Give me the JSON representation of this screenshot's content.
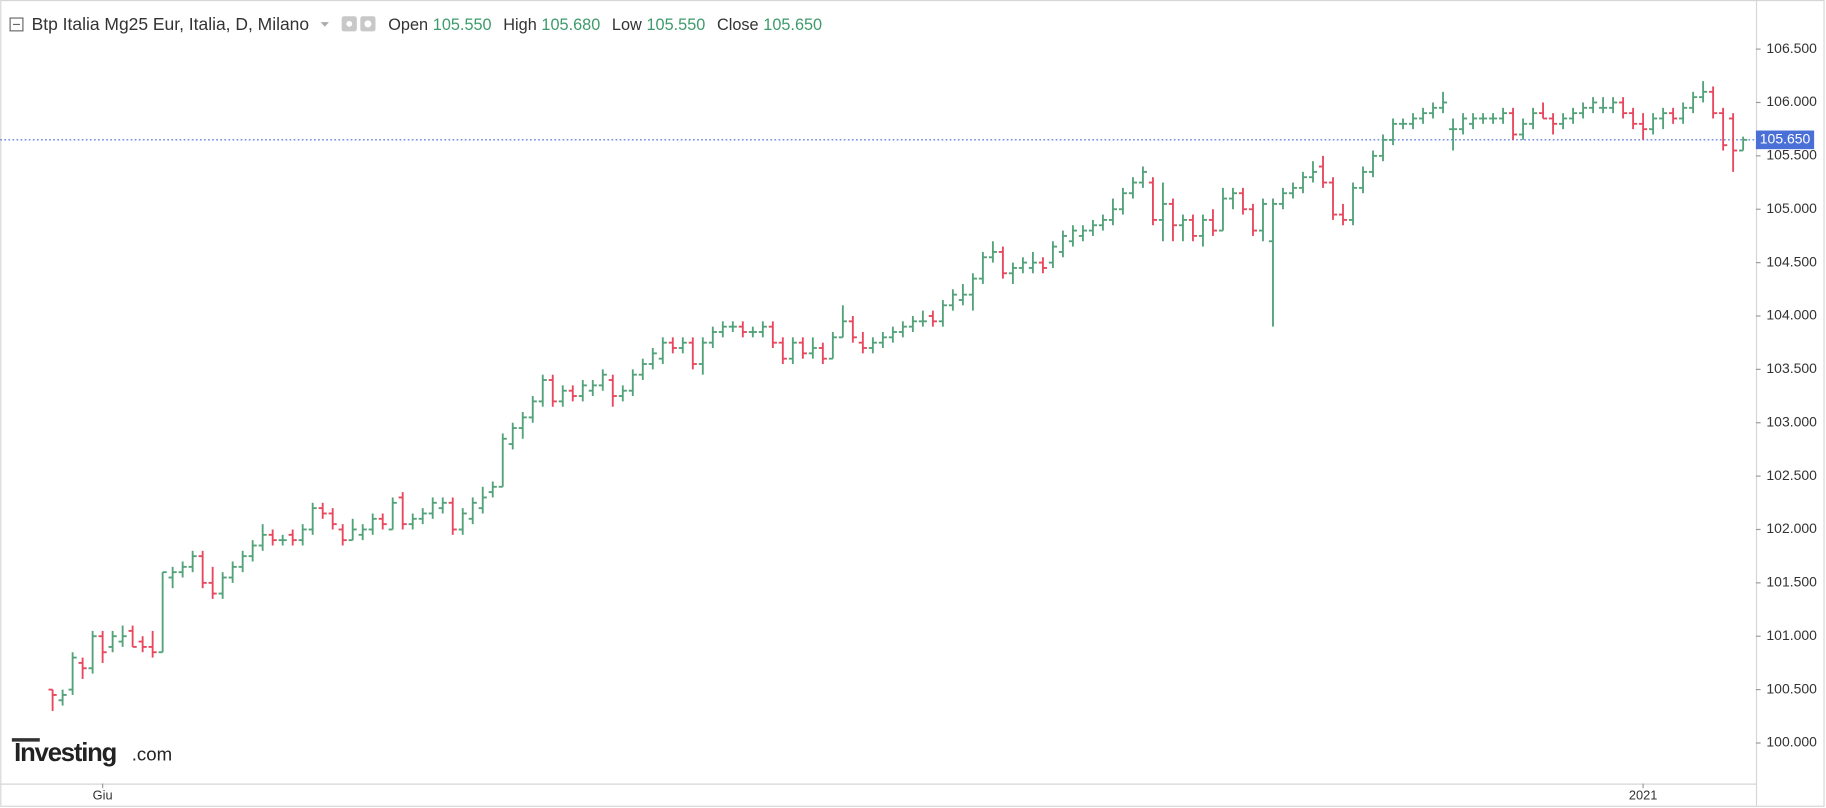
{
  "chart_data": {
    "type": "ohlc",
    "header": {
      "title": "Btp Italia Mg25 Eur, Italia, D, Milano",
      "fields": [
        {
          "label": "Open",
          "value": "105.550"
        },
        {
          "label": "High",
          "value": "105.680"
        },
        {
          "label": "Low",
          "value": "105.550"
        },
        {
          "label": "Close",
          "value": "105.650"
        }
      ]
    },
    "watermark": {
      "brand": "Investing",
      "suffix": ".com"
    },
    "up_color": "#53a27a",
    "down_color": "#e8475d",
    "ylim": [
      99.62,
      106.96
    ],
    "yticks": [
      {
        "value": 100,
        "label": "100.000"
      },
      {
        "value": 100.5,
        "label": "100.500"
      },
      {
        "value": 101,
        "label": "101.000"
      },
      {
        "value": 101.5,
        "label": "101.500"
      },
      {
        "value": 102,
        "label": "102.000"
      },
      {
        "value": 102.5,
        "label": "102.500"
      },
      {
        "value": 103,
        "label": "103.000"
      },
      {
        "value": 103.5,
        "label": "103.500"
      },
      {
        "value": 104,
        "label": "104.000"
      },
      {
        "value": 104.5,
        "label": "104.500"
      },
      {
        "value": 105,
        "label": "105.000"
      },
      {
        "value": 105.5,
        "label": "105.500"
      },
      {
        "value": 106,
        "label": "106.000"
      },
      {
        "value": 106.5,
        "label": "106.500"
      }
    ],
    "last_price": {
      "value": 105.65,
      "label": "105.650"
    },
    "categories": [
      null,
      null,
      null,
      null,
      null,
      "Giu",
      null,
      null,
      null,
      null,
      null,
      null,
      null,
      null,
      null,
      null,
      null,
      null,
      null,
      null,
      null,
      null,
      null,
      null,
      null,
      null,
      null,
      null,
      null,
      null,
      null,
      null,
      null,
      null,
      null,
      null,
      null,
      null,
      null,
      null,
      null,
      null,
      null,
      null,
      null,
      null,
      null,
      null,
      null,
      null,
      null,
      null,
      null,
      null,
      null,
      null,
      null,
      null,
      null,
      null,
      null,
      null,
      null,
      null,
      null,
      null,
      null,
      null,
      null,
      null,
      null,
      null,
      null,
      null,
      null,
      null,
      null,
      null,
      null,
      null,
      null,
      null,
      null,
      null,
      null,
      null,
      null,
      null,
      null,
      null,
      null,
      null,
      null,
      null,
      null,
      null,
      null,
      null,
      null,
      null,
      null,
      null,
      null,
      null,
      null,
      null,
      null,
      null,
      null,
      null,
      null,
      null,
      null,
      null,
      null,
      null,
      null,
      null,
      null,
      null,
      null,
      null,
      null,
      null,
      null,
      null,
      null,
      null,
      null,
      null,
      null,
      null,
      null,
      null,
      null,
      null,
      null,
      null,
      null,
      null,
      null,
      null,
      null,
      null,
      null,
      null,
      null,
      null,
      null,
      null,
      null,
      null,
      null,
      null,
      null,
      null,
      null,
      null,
      null,
      "2021",
      null,
      null,
      null,
      null,
      null,
      null,
      null,
      null,
      null,
      null
    ],
    "ohlc": [
      [
        100.5,
        100.5,
        100.3,
        100.45
      ],
      [
        100.4,
        100.5,
        100.35,
        100.45
      ],
      [
        100.5,
        100.85,
        100.45,
        100.8
      ],
      [
        100.75,
        100.8,
        100.6,
        100.7
      ],
      [
        100.7,
        101.05,
        100.65,
        101.0
      ],
      [
        101.0,
        101.05,
        100.75,
        100.85
      ],
      [
        100.9,
        101.05,
        100.85,
        101.0
      ],
      [
        100.95,
        101.1,
        100.9,
        101.0
      ],
      [
        101.05,
        101.1,
        100.9,
        100.9
      ],
      [
        100.95,
        101.0,
        100.85,
        100.9
      ],
      [
        100.9,
        101.05,
        100.8,
        100.85
      ],
      [
        100.85,
        101.6,
        100.85,
        101.6
      ],
      [
        101.55,
        101.65,
        101.45,
        101.6
      ],
      [
        101.6,
        101.7,
        101.55,
        101.65
      ],
      [
        101.65,
        101.8,
        101.6,
        101.75
      ],
      [
        101.75,
        101.8,
        101.45,
        101.5
      ],
      [
        101.5,
        101.65,
        101.35,
        101.4
      ],
      [
        101.4,
        101.6,
        101.35,
        101.55
      ],
      [
        101.55,
        101.7,
        101.5,
        101.65
      ],
      [
        101.65,
        101.8,
        101.6,
        101.75
      ],
      [
        101.75,
        101.9,
        101.7,
        101.85
      ],
      [
        101.85,
        102.05,
        101.8,
        101.95
      ],
      [
        101.95,
        102.0,
        101.85,
        101.9
      ],
      [
        101.9,
        101.95,
        101.85,
        101.9
      ],
      [
        101.95,
        102.0,
        101.85,
        101.9
      ],
      [
        101.9,
        102.05,
        101.85,
        102.0
      ],
      [
        102.0,
        102.25,
        101.95,
        102.2
      ],
      [
        102.2,
        102.25,
        102.1,
        102.15
      ],
      [
        102.15,
        102.2,
        102.0,
        102.05
      ],
      [
        102.0,
        102.05,
        101.85,
        101.9
      ],
      [
        101.9,
        102.1,
        101.9,
        102.0
      ],
      [
        101.95,
        102.05,
        101.9,
        102.0
      ],
      [
        102.0,
        102.15,
        101.95,
        102.1
      ],
      [
        102.1,
        102.15,
        102.0,
        102.05
      ],
      [
        102.0,
        102.3,
        102.0,
        102.25
      ],
      [
        102.3,
        102.35,
        102.0,
        102.05
      ],
      [
        102.05,
        102.15,
        102.0,
        102.1
      ],
      [
        102.1,
        102.2,
        102.05,
        102.15
      ],
      [
        102.15,
        102.3,
        102.1,
        102.25
      ],
      [
        102.2,
        102.3,
        102.15,
        102.25
      ],
      [
        102.25,
        102.3,
        101.95,
        102.0
      ],
      [
        102.0,
        102.2,
        101.95,
        102.15
      ],
      [
        102.1,
        102.3,
        102.05,
        102.25
      ],
      [
        102.2,
        102.4,
        102.15,
        102.3
      ],
      [
        102.35,
        102.45,
        102.3,
        102.4
      ],
      [
        102.4,
        102.9,
        102.4,
        102.85
      ],
      [
        102.8,
        103.0,
        102.75,
        102.95
      ],
      [
        102.95,
        103.1,
        102.85,
        103.05
      ],
      [
        103.05,
        103.25,
        103.0,
        103.2
      ],
      [
        103.2,
        103.45,
        103.15,
        103.4
      ],
      [
        103.4,
        103.45,
        103.15,
        103.2
      ],
      [
        103.2,
        103.35,
        103.15,
        103.3
      ],
      [
        103.3,
        103.35,
        103.2,
        103.25
      ],
      [
        103.25,
        103.4,
        103.2,
        103.35
      ],
      [
        103.3,
        103.4,
        103.25,
        103.35
      ],
      [
        103.35,
        103.5,
        103.3,
        103.45
      ],
      [
        103.4,
        103.45,
        103.15,
        103.25
      ],
      [
        103.25,
        103.35,
        103.2,
        103.3
      ],
      [
        103.3,
        103.5,
        103.25,
        103.45
      ],
      [
        103.45,
        103.6,
        103.4,
        103.55
      ],
      [
        103.55,
        103.7,
        103.5,
        103.65
      ],
      [
        103.6,
        103.8,
        103.55,
        103.75
      ],
      [
        103.75,
        103.8,
        103.65,
        103.7
      ],
      [
        103.7,
        103.8,
        103.65,
        103.75
      ],
      [
        103.75,
        103.8,
        103.5,
        103.55
      ],
      [
        103.55,
        103.8,
        103.45,
        103.75
      ],
      [
        103.75,
        103.9,
        103.7,
        103.85
      ],
      [
        103.85,
        103.95,
        103.8,
        103.9
      ],
      [
        103.9,
        103.95,
        103.85,
        103.9
      ],
      [
        103.9,
        103.95,
        103.8,
        103.85
      ],
      [
        103.85,
        103.9,
        103.8,
        103.85
      ],
      [
        103.85,
        103.95,
        103.8,
        103.9
      ],
      [
        103.9,
        103.95,
        103.7,
        103.75
      ],
      [
        103.75,
        103.8,
        103.55,
        103.6
      ],
      [
        103.6,
        103.8,
        103.55,
        103.75
      ],
      [
        103.75,
        103.8,
        103.6,
        103.65
      ],
      [
        103.65,
        103.8,
        103.6,
        103.7
      ],
      [
        103.7,
        103.75,
        103.55,
        103.6
      ],
      [
        103.6,
        103.85,
        103.6,
        103.8
      ],
      [
        103.8,
        104.1,
        103.8,
        103.95
      ],
      [
        103.95,
        104.0,
        103.75,
        103.8
      ],
      [
        103.75,
        103.85,
        103.65,
        103.7
      ],
      [
        103.7,
        103.8,
        103.65,
        103.75
      ],
      [
        103.75,
        103.85,
        103.7,
        103.8
      ],
      [
        103.8,
        103.9,
        103.75,
        103.85
      ],
      [
        103.85,
        103.95,
        103.8,
        103.9
      ],
      [
        103.9,
        104.0,
        103.85,
        103.95
      ],
      [
        103.95,
        104.05,
        103.9,
        103.95
      ],
      [
        104.0,
        104.05,
        103.9,
        103.95
      ],
      [
        103.95,
        104.15,
        103.9,
        104.1
      ],
      [
        104.1,
        104.25,
        104.05,
        104.2
      ],
      [
        104.15,
        104.3,
        104.1,
        104.2
      ],
      [
        104.2,
        104.4,
        104.05,
        104.35
      ],
      [
        104.35,
        104.6,
        104.3,
        104.55
      ],
      [
        104.55,
        104.7,
        104.5,
        104.6
      ],
      [
        104.6,
        104.65,
        104.35,
        104.4
      ],
      [
        104.4,
        104.5,
        104.3,
        104.45
      ],
      [
        104.45,
        104.55,
        104.4,
        104.5
      ],
      [
        104.45,
        104.6,
        104.4,
        104.5
      ],
      [
        104.5,
        104.55,
        104.4,
        104.45
      ],
      [
        104.5,
        104.7,
        104.45,
        104.65
      ],
      [
        104.6,
        104.8,
        104.55,
        104.75
      ],
      [
        104.7,
        104.85,
        104.65,
        104.8
      ],
      [
        104.75,
        104.85,
        104.7,
        104.8
      ],
      [
        104.8,
        104.9,
        104.75,
        104.85
      ],
      [
        104.85,
        104.95,
        104.8,
        104.9
      ],
      [
        104.9,
        105.1,
        104.85,
        105.0
      ],
      [
        105.0,
        105.2,
        104.95,
        105.15
      ],
      [
        105.15,
        105.3,
        105.1,
        105.25
      ],
      [
        105.25,
        105.4,
        105.2,
        105.35
      ],
      [
        105.25,
        105.3,
        104.85,
        104.9
      ],
      [
        104.9,
        105.25,
        104.7,
        105.05
      ],
      [
        105.05,
        105.1,
        104.7,
        104.85
      ],
      [
        104.85,
        104.95,
        104.7,
        104.9
      ],
      [
        104.9,
        104.95,
        104.7,
        104.75
      ],
      [
        104.75,
        104.95,
        104.65,
        104.9
      ],
      [
        104.9,
        105.0,
        104.75,
        104.8
      ],
      [
        104.8,
        105.2,
        104.8,
        105.1
      ],
      [
        105.1,
        105.2,
        105.0,
        105.15
      ],
      [
        105.15,
        105.2,
        104.95,
        105.0
      ],
      [
        105.0,
        105.05,
        104.75,
        104.8
      ],
      [
        104.8,
        105.1,
        104.7,
        105.05
      ],
      [
        104.7,
        105.1,
        103.9,
        105.05
      ],
      [
        105.05,
        105.2,
        105.0,
        105.15
      ],
      [
        105.15,
        105.25,
        105.1,
        105.2
      ],
      [
        105.2,
        105.35,
        105.15,
        105.3
      ],
      [
        105.3,
        105.45,
        105.25,
        105.35
      ],
      [
        105.4,
        105.5,
        105.2,
        105.25
      ],
      [
        105.25,
        105.3,
        104.9,
        104.95
      ],
      [
        104.95,
        105.05,
        104.85,
        104.9
      ],
      [
        104.9,
        105.25,
        104.85,
        105.2
      ],
      [
        105.2,
        105.4,
        105.15,
        105.35
      ],
      [
        105.35,
        105.55,
        105.3,
        105.5
      ],
      [
        105.5,
        105.7,
        105.45,
        105.65
      ],
      [
        105.65,
        105.85,
        105.6,
        105.8
      ],
      [
        105.8,
        105.85,
        105.75,
        105.8
      ],
      [
        105.8,
        105.9,
        105.75,
        105.85
      ],
      [
        105.85,
        105.95,
        105.8,
        105.9
      ],
      [
        105.9,
        106.0,
        105.85,
        105.95
      ],
      [
        105.95,
        106.1,
        105.9,
        106.0
      ],
      [
        105.75,
        105.85,
        105.55,
        105.75
      ],
      [
        105.75,
        105.9,
        105.7,
        105.85
      ],
      [
        105.8,
        105.9,
        105.75,
        105.85
      ],
      [
        105.85,
        105.9,
        105.8,
        105.85
      ],
      [
        105.85,
        105.9,
        105.8,
        105.85
      ],
      [
        105.85,
        105.95,
        105.8,
        105.9
      ],
      [
        105.9,
        105.95,
        105.65,
        105.7
      ],
      [
        105.7,
        105.85,
        105.65,
        105.8
      ],
      [
        105.8,
        105.95,
        105.75,
        105.9
      ],
      [
        105.9,
        106.0,
        105.85,
        105.85
      ],
      [
        105.85,
        105.9,
        105.7,
        105.8
      ],
      [
        105.8,
        105.9,
        105.75,
        105.85
      ],
      [
        105.85,
        105.95,
        105.8,
        105.9
      ],
      [
        105.9,
        106.0,
        105.85,
        105.95
      ],
      [
        105.95,
        106.05,
        105.9,
        106.0
      ],
      [
        105.95,
        106.05,
        105.9,
        105.95
      ],
      [
        105.95,
        106.05,
        105.9,
        106.0
      ],
      [
        106.0,
        106.05,
        105.85,
        105.9
      ],
      [
        105.9,
        105.95,
        105.75,
        105.8
      ],
      [
        105.8,
        105.9,
        105.65,
        105.75
      ],
      [
        105.75,
        105.9,
        105.7,
        105.85
      ],
      [
        105.85,
        105.95,
        105.75,
        105.9
      ],
      [
        105.9,
        105.95,
        105.8,
        105.85
      ],
      [
        105.85,
        106.0,
        105.8,
        105.95
      ],
      [
        105.95,
        106.1,
        105.9,
        106.05
      ],
      [
        106.05,
        106.2,
        106.0,
        106.1
      ],
      [
        106.1,
        106.15,
        105.85,
        105.9
      ],
      [
        105.9,
        105.95,
        105.55,
        105.6
      ],
      [
        105.85,
        105.9,
        105.35,
        105.55
      ],
      [
        105.55,
        105.68,
        105.55,
        105.65
      ]
    ]
  }
}
